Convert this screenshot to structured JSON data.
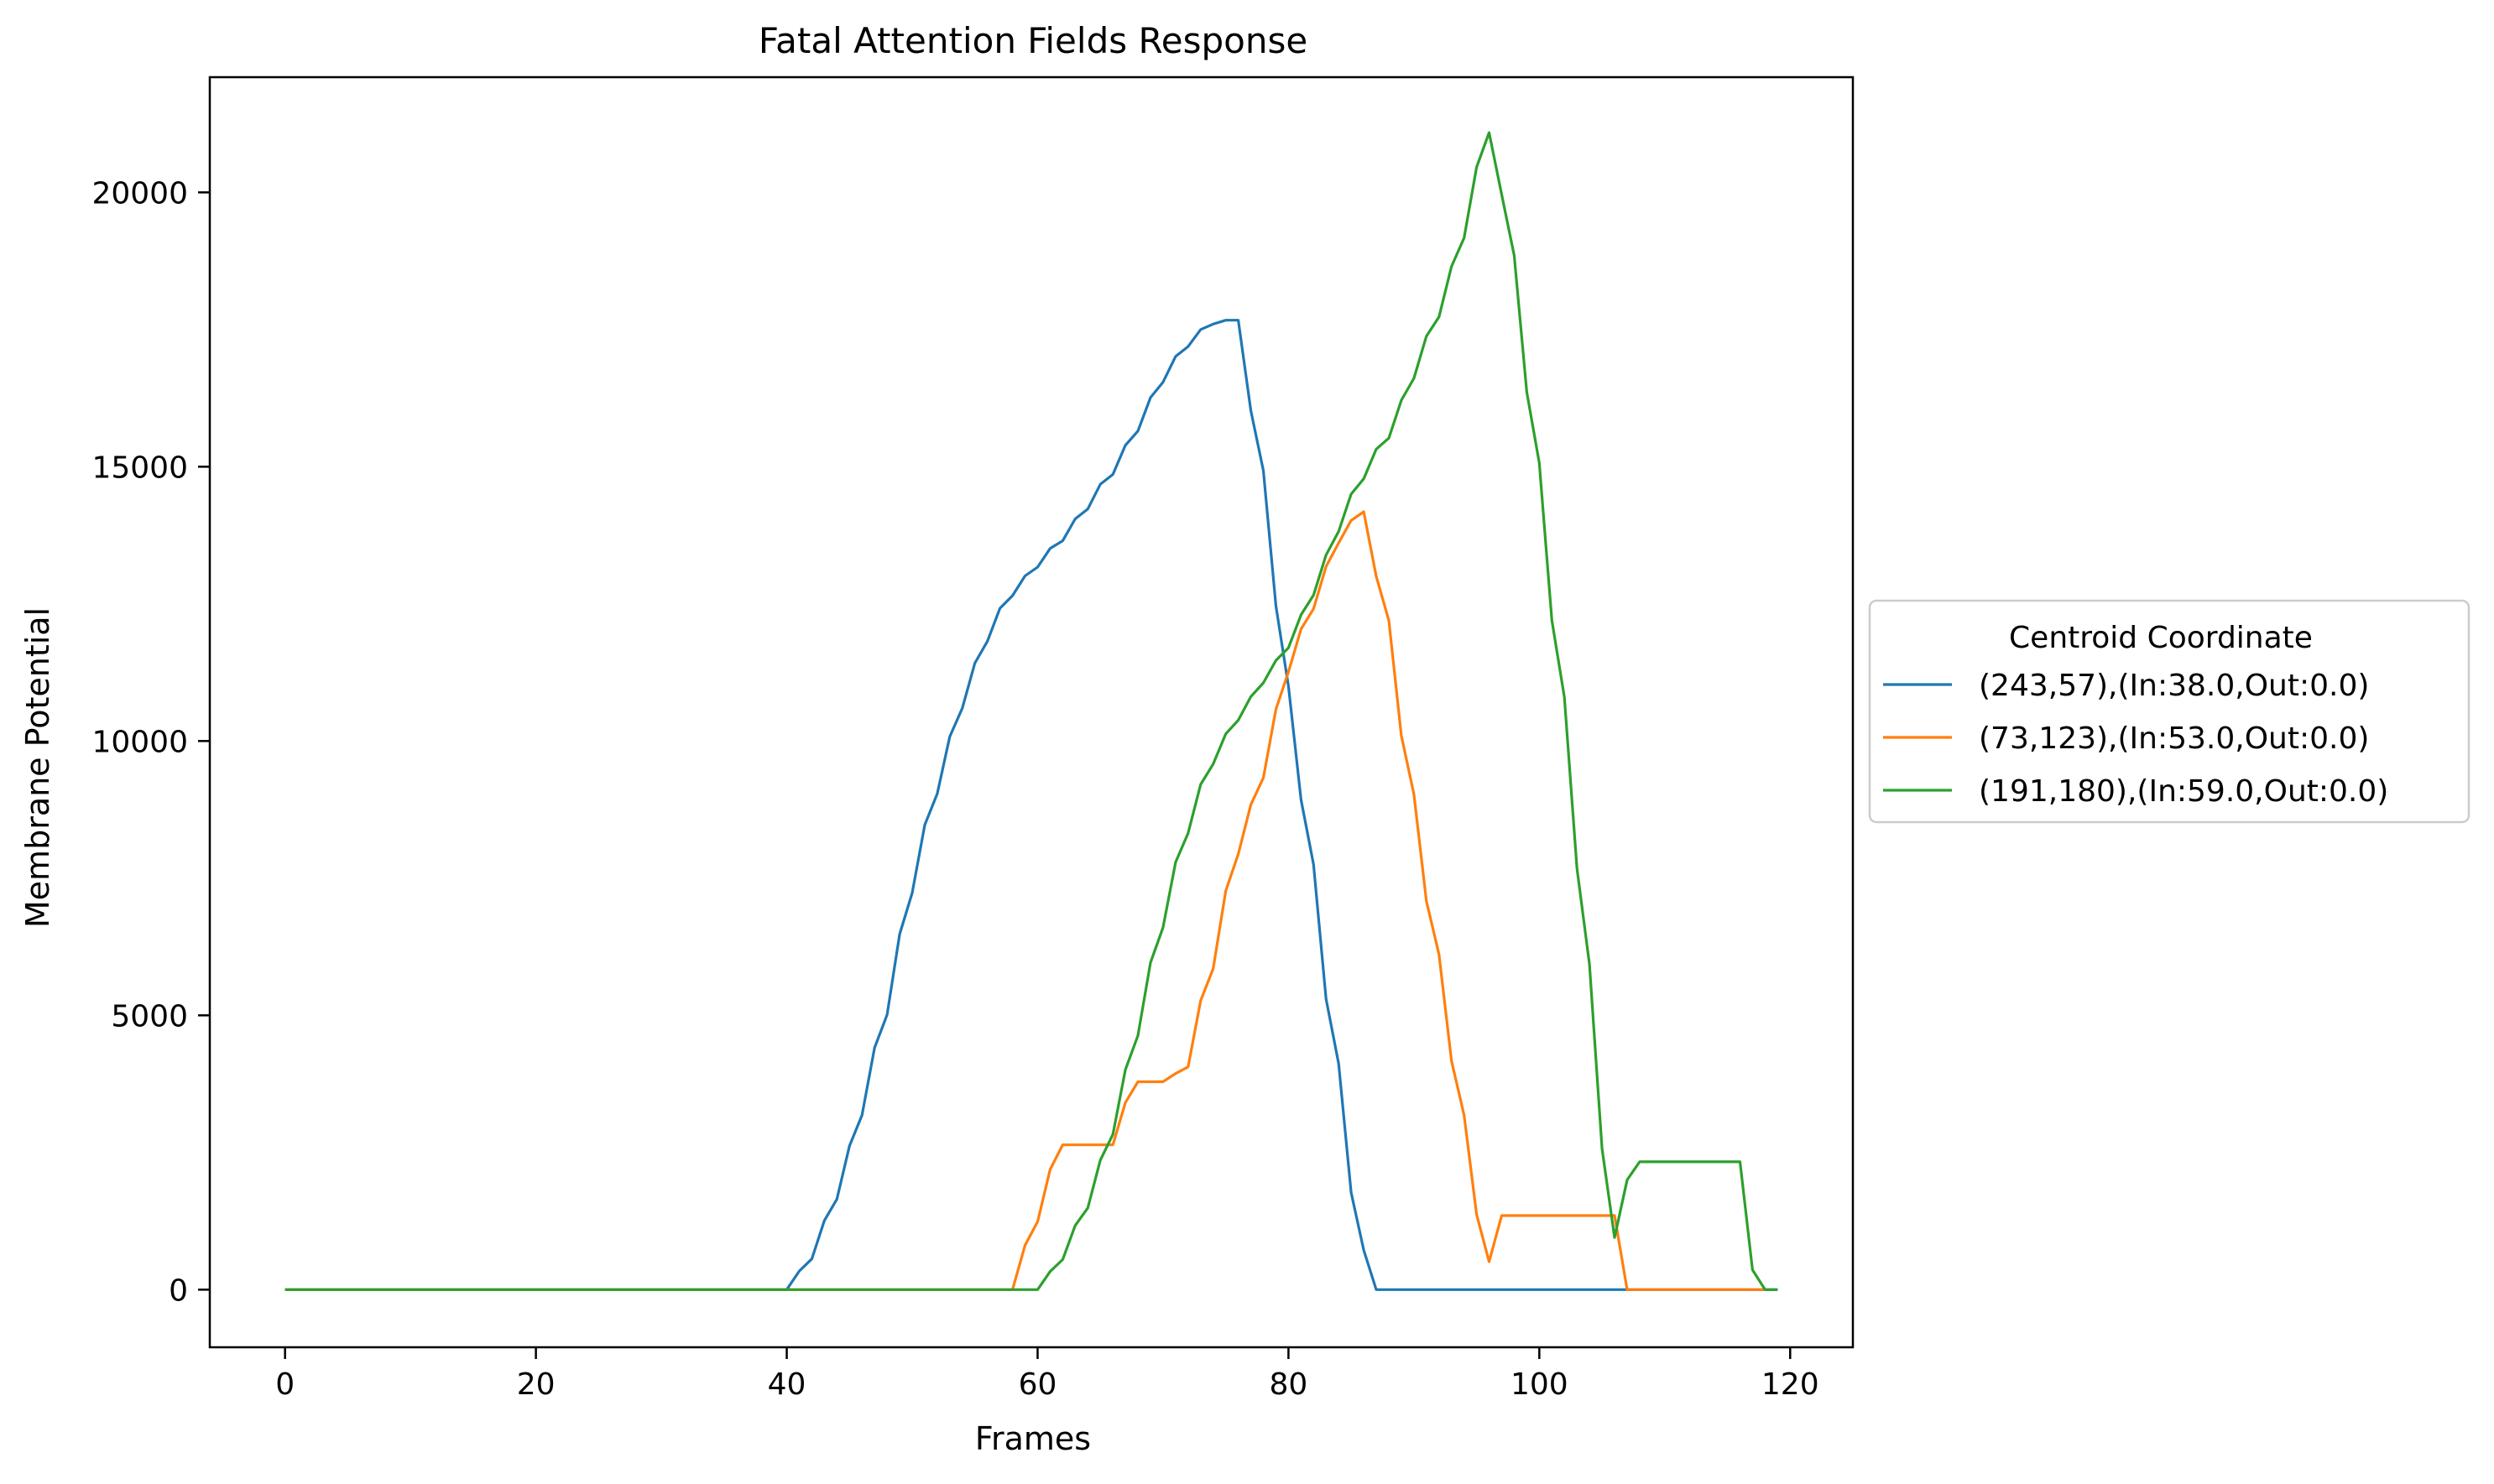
{
  "chart_data": {
    "type": "line",
    "title": "Fatal Attention Fields Response",
    "xlabel": "Frames",
    "ylabel": "Membrane Potential",
    "xlim": [
      -6,
      125
    ],
    "ylim": [
      -1050,
      22100
    ],
    "xticks": [
      0,
      20,
      40,
      60,
      80,
      100,
      120
    ],
    "yticks": [
      0,
      5000,
      10000,
      15000,
      20000
    ],
    "grid": false,
    "legend": {
      "title": "Centroid Coordinate",
      "placement": "center-right-outside"
    },
    "series": [
      {
        "name": "(243,57),(In:38.0,Out:0.0)",
        "color": "#1f77b4",
        "points": [
          [
            0,
            0
          ],
          [
            40,
            0
          ],
          [
            41,
            340
          ],
          [
            42,
            560
          ],
          [
            43,
            1260
          ],
          [
            44,
            1650
          ],
          [
            45,
            2620
          ],
          [
            46,
            3180
          ],
          [
            47,
            4410
          ],
          [
            48,
            5010
          ],
          [
            49,
            6480
          ],
          [
            50,
            7230
          ],
          [
            51,
            8470
          ],
          [
            52,
            9040
          ],
          [
            53,
            10080
          ],
          [
            54,
            10600
          ],
          [
            55,
            11420
          ],
          [
            56,
            11820
          ],
          [
            57,
            12420
          ],
          [
            58,
            12650
          ],
          [
            59,
            13010
          ],
          [
            60,
            13170
          ],
          [
            61,
            13510
          ],
          [
            62,
            13650
          ],
          [
            63,
            14050
          ],
          [
            64,
            14230
          ],
          [
            65,
            14680
          ],
          [
            66,
            14860
          ],
          [
            67,
            15390
          ],
          [
            68,
            15650
          ],
          [
            69,
            16260
          ],
          [
            70,
            16540
          ],
          [
            71,
            17010
          ],
          [
            72,
            17190
          ],
          [
            73,
            17500
          ],
          [
            74,
            17600
          ],
          [
            75,
            17670
          ],
          [
            76,
            17670
          ],
          [
            77,
            16020
          ],
          [
            78,
            14930
          ],
          [
            79,
            12460
          ],
          [
            80,
            11000
          ],
          [
            81,
            8930
          ],
          [
            82,
            7750
          ],
          [
            83,
            5300
          ],
          [
            84,
            4120
          ],
          [
            85,
            1770
          ],
          [
            86,
            720
          ],
          [
            87,
            0
          ],
          [
            119,
            0
          ]
        ]
      },
      {
        "name": "(73,123),(In:53.0,Out:0.0)",
        "color": "#ff7f0e",
        "points": [
          [
            0,
            0
          ],
          [
            58,
            0
          ],
          [
            59,
            810
          ],
          [
            60,
            1240
          ],
          [
            61,
            2190
          ],
          [
            62,
            2640
          ],
          [
            63,
            2640
          ],
          [
            64,
            2640
          ],
          [
            65,
            2640
          ],
          [
            66,
            2640
          ],
          [
            67,
            3410
          ],
          [
            68,
            3790
          ],
          [
            69,
            3790
          ],
          [
            70,
            3790
          ],
          [
            71,
            3940
          ],
          [
            72,
            4060
          ],
          [
            73,
            5270
          ],
          [
            74,
            5850
          ],
          [
            75,
            7270
          ],
          [
            76,
            7940
          ],
          [
            77,
            8840
          ],
          [
            78,
            9330
          ],
          [
            79,
            10580
          ],
          [
            80,
            11260
          ],
          [
            81,
            12040
          ],
          [
            82,
            12410
          ],
          [
            83,
            13180
          ],
          [
            84,
            13610
          ],
          [
            85,
            14020
          ],
          [
            86,
            14180
          ],
          [
            87,
            13000
          ],
          [
            88,
            12200
          ],
          [
            89,
            10100
          ],
          [
            90,
            9030
          ],
          [
            91,
            7080
          ],
          [
            92,
            6110
          ],
          [
            93,
            4170
          ],
          [
            94,
            3180
          ],
          [
            95,
            1370
          ],
          [
            96,
            510
          ],
          [
            97,
            1350
          ],
          [
            98,
            1350
          ],
          [
            99,
            1350
          ],
          [
            100,
            1350
          ],
          [
            101,
            1350
          ],
          [
            102,
            1350
          ],
          [
            103,
            1350
          ],
          [
            104,
            1350
          ],
          [
            105,
            1350
          ],
          [
            106,
            1350
          ],
          [
            107,
            0
          ],
          [
            118,
            0
          ]
        ]
      },
      {
        "name": "(191,180),(In:59.0,Out:0.0)",
        "color": "#2ca02c",
        "points": [
          [
            0,
            0
          ],
          [
            60,
            0
          ],
          [
            61,
            330
          ],
          [
            62,
            550
          ],
          [
            63,
            1170
          ],
          [
            64,
            1490
          ],
          [
            65,
            2360
          ],
          [
            66,
            2830
          ],
          [
            67,
            4010
          ],
          [
            68,
            4630
          ],
          [
            69,
            5960
          ],
          [
            70,
            6600
          ],
          [
            71,
            7790
          ],
          [
            72,
            8320
          ],
          [
            73,
            9210
          ],
          [
            74,
            9580
          ],
          [
            75,
            10130
          ],
          [
            76,
            10380
          ],
          [
            77,
            10810
          ],
          [
            78,
            11060
          ],
          [
            79,
            11470
          ],
          [
            80,
            11700
          ],
          [
            81,
            12300
          ],
          [
            82,
            12660
          ],
          [
            83,
            13390
          ],
          [
            84,
            13820
          ],
          [
            85,
            14500
          ],
          [
            86,
            14780
          ],
          [
            87,
            15320
          ],
          [
            88,
            15520
          ],
          [
            89,
            16210
          ],
          [
            90,
            16610
          ],
          [
            91,
            17380
          ],
          [
            92,
            17730
          ],
          [
            93,
            18650
          ],
          [
            94,
            19170
          ],
          [
            95,
            20460
          ],
          [
            96,
            21090
          ],
          [
            97,
            19960
          ],
          [
            98,
            18850
          ],
          [
            99,
            16360
          ],
          [
            100,
            15070
          ],
          [
            101,
            12200
          ],
          [
            102,
            10800
          ],
          [
            103,
            7680
          ],
          [
            104,
            5930
          ],
          [
            105,
            2570
          ],
          [
            106,
            950
          ],
          [
            107,
            2000
          ],
          [
            108,
            2330
          ],
          [
            109,
            2330
          ],
          [
            110,
            2330
          ],
          [
            111,
            2330
          ],
          [
            112,
            2330
          ],
          [
            113,
            2330
          ],
          [
            114,
            2330
          ],
          [
            115,
            2330
          ],
          [
            116,
            2330
          ],
          [
            117,
            360
          ],
          [
            118,
            0
          ],
          [
            119,
            0
          ]
        ]
      }
    ]
  }
}
